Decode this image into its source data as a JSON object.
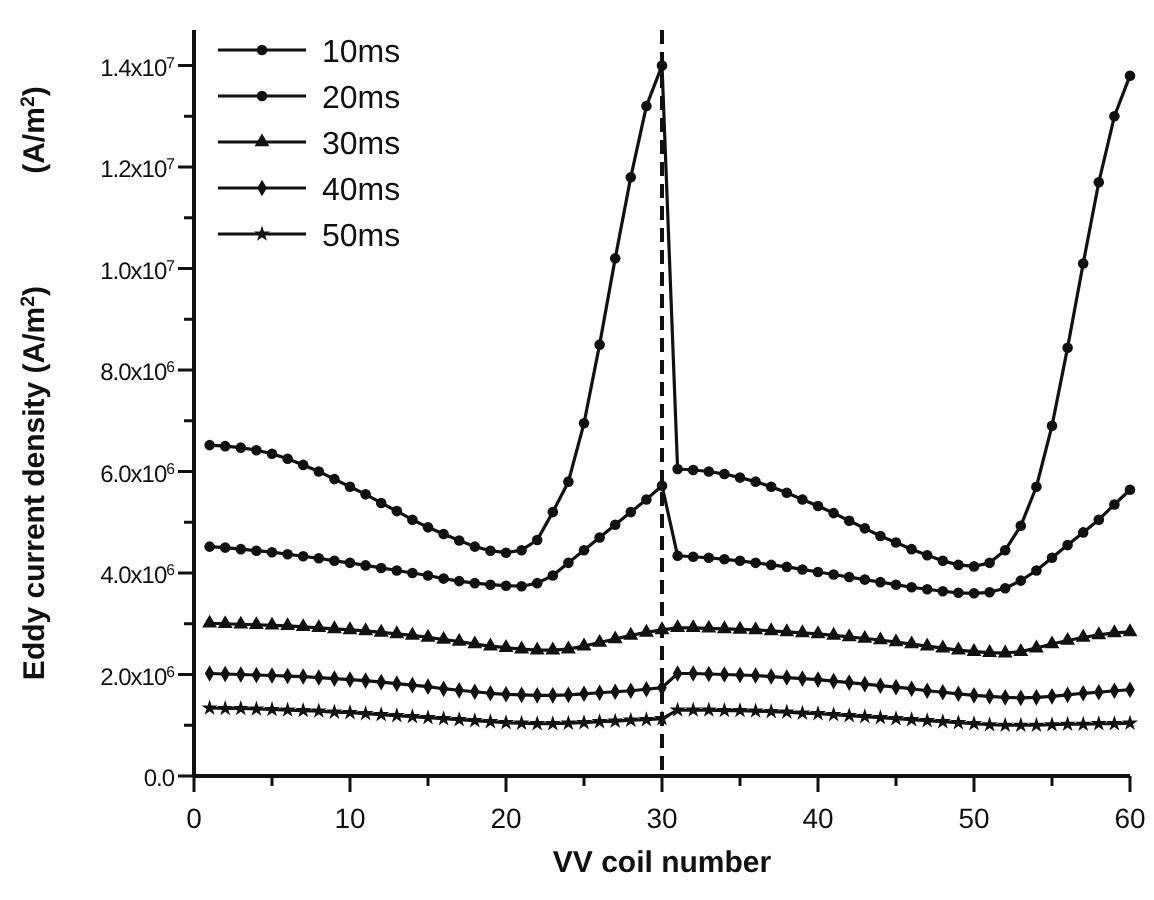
{
  "chart_data": {
    "type": "line",
    "xlabel": "VV coil number",
    "ylabel": "Eddy current density (A/m$^{2}$)",
    "annotations": [
      "(A/m$^{2}$)"
    ],
    "x": [
      1,
      2,
      3,
      4,
      5,
      6,
      7,
      8,
      9,
      10,
      11,
      12,
      13,
      14,
      15,
      16,
      17,
      18,
      19,
      20,
      21,
      22,
      23,
      24,
      25,
      26,
      27,
      28,
      29,
      30,
      31,
      32,
      33,
      34,
      35,
      36,
      37,
      38,
      39,
      40,
      41,
      42,
      43,
      44,
      45,
      46,
      47,
      48,
      49,
      50,
      51,
      52,
      53,
      54,
      55,
      56,
      57,
      58,
      59,
      60
    ],
    "xlim": [
      0,
      60
    ],
    "xticks": [
      0,
      {
        "value": 5,
        "label": null
      },
      10,
      {
        "value": 15,
        "label": null
      },
      20,
      {
        "value": 25,
        "label": null
      },
      30,
      {
        "value": 35,
        "label": null
      },
      40,
      {
        "value": 45,
        "label": null
      },
      50,
      {
        "value": 55,
        "label": null
      },
      60
    ],
    "ylim": [
      0,
      14700000
    ],
    "yticks": [
      {
        "value": 0,
        "label": "0.0"
      },
      {
        "value": 1000000,
        "label": null
      },
      {
        "value": 2000000,
        "label": "2.0x10$^{6}$"
      },
      {
        "value": 3000000,
        "label": null
      },
      {
        "value": 4000000,
        "label": "4.0x10$^{6}$"
      },
      {
        "value": 5000000,
        "label": null
      },
      {
        "value": 6000000,
        "label": "6.0x10$^{6}$"
      },
      {
        "value": 7000000,
        "label": null
      },
      {
        "value": 8000000,
        "label": "8.0x10$^{6}$"
      },
      {
        "value": 9000000,
        "label": null
      },
      {
        "value": 10000000,
        "label": "1.0x10$^{7}$"
      },
      {
        "value": 11000000,
        "label": null
      },
      {
        "value": 12000000,
        "label": "1.2x10$^{7}$"
      },
      {
        "value": 13000000,
        "label": null
      },
      {
        "value": 14000000,
        "label": "1.4x10$^{7}$"
      }
    ],
    "grid": false,
    "legend": "top left",
    "line_style": "solid",
    "ref_lines": [
      {
        "axis": "x",
        "value": 30,
        "label": null,
        "line_style": "dashed",
        "color": "#111111"
      }
    ],
    "series": [
      {
        "name": "10ms",
        "color": "#111111",
        "marker": "circle",
        "values": [
          6520000.0,
          6500000.0,
          6470000.0,
          6420000.0,
          6350000.0,
          6250000.0,
          6130000.0,
          6000000.0,
          5850000.0,
          5700000.0,
          5550000.0,
          5380000.0,
          5220000.0,
          5050000.0,
          4900000.0,
          4770000.0,
          4640000.0,
          4520000.0,
          4440000.0,
          4400000.0,
          4450000.0,
          4650000.0,
          5200000.0,
          5800000.0,
          6950000.0,
          8500000.0,
          10200000.0,
          11800000.0,
          13200000.0,
          14000000.0,
          6050000.0,
          6030000.0,
          6000000.0,
          5950000.0,
          5880000.0,
          5800000.0,
          5700000.0,
          5580000.0,
          5450000.0,
          5320000.0,
          5180000.0,
          5030000.0,
          4880000.0,
          4730000.0,
          4600000.0,
          4470000.0,
          4350000.0,
          4240000.0,
          4160000.0,
          4130000.0,
          4200000.0,
          4450000.0,
          4930000.0,
          5700000.0,
          6900000.0,
          8440000.0,
          10100000.0,
          11700000.0,
          13000000.0,
          13800000.0
        ]
      },
      {
        "name": "20ms",
        "color": "#111111",
        "marker": "circle",
        "values": [
          4520000.0,
          4500000.0,
          4470000.0,
          4440000.0,
          4410000.0,
          4370000.0,
          4330000.0,
          4290000.0,
          4240000.0,
          4200000.0,
          4150000.0,
          4100000.0,
          4050000.0,
          4000000.0,
          3950000.0,
          3890000.0,
          3840000.0,
          3800000.0,
          3770000.0,
          3750000.0,
          3740000.0,
          3800000.0,
          3950000.0,
          4200000.0,
          4450000.0,
          4700000.0,
          4950000.0,
          5200000.0,
          5450000.0,
          5720000.0,
          4340000.0,
          4320000.0,
          4300000.0,
          4270000.0,
          4240000.0,
          4200000.0,
          4160000.0,
          4120000.0,
          4070000.0,
          4020000.0,
          3970000.0,
          3920000.0,
          3870000.0,
          3820000.0,
          3770000.0,
          3720000.0,
          3680000.0,
          3640000.0,
          3610000.0,
          3600000.0,
          3620000.0,
          3700000.0,
          3850000.0,
          4050000.0,
          4300000.0,
          4550000.0,
          4800000.0,
          5050000.0,
          5350000.0,
          5640000.0
        ]
      },
      {
        "name": "30ms",
        "color": "#111111",
        "marker": "triangle",
        "values": [
          3010000.0,
          3000000.0,
          2990000.0,
          2980000.0,
          2970000.0,
          2960000.0,
          2940000.0,
          2920000.0,
          2900000.0,
          2880000.0,
          2860000.0,
          2830000.0,
          2800000.0,
          2770000.0,
          2730000.0,
          2690000.0,
          2650000.0,
          2600000.0,
          2560000.0,
          2530000.0,
          2500000.0,
          2480000.0,
          2480000.0,
          2500000.0,
          2560000.0,
          2630000.0,
          2700000.0,
          2770000.0,
          2830000.0,
          2880000.0,
          2920000.0,
          2920000.0,
          2910000.0,
          2900000.0,
          2890000.0,
          2880000.0,
          2860000.0,
          2840000.0,
          2820000.0,
          2800000.0,
          2770000.0,
          2740000.0,
          2710000.0,
          2680000.0,
          2640000.0,
          2600000.0,
          2560000.0,
          2520000.0,
          2480000.0,
          2450000.0,
          2430000.0,
          2420000.0,
          2450000.0,
          2520000.0,
          2600000.0,
          2670000.0,
          2730000.0,
          2780000.0,
          2820000.0,
          2840000.0
        ]
      },
      {
        "name": "40ms",
        "color": "#111111",
        "marker": "diamond",
        "values": [
          2020000.0,
          2010000.0,
          2000000.0,
          1990000.0,
          1980000.0,
          1970000.0,
          1960000.0,
          1940000.0,
          1920000.0,
          1900000.0,
          1880000.0,
          1850000.0,
          1820000.0,
          1790000.0,
          1760000.0,
          1720000.0,
          1690000.0,
          1660000.0,
          1630000.0,
          1610000.0,
          1600000.0,
          1590000.0,
          1590000.0,
          1600000.0,
          1620000.0,
          1640000.0,
          1660000.0,
          1680000.0,
          1710000.0,
          1740000.0,
          2020000.0,
          2020000.0,
          2010000.0,
          2000000.0,
          1990000.0,
          1980000.0,
          1960000.0,
          1940000.0,
          1920000.0,
          1900000.0,
          1870000.0,
          1840000.0,
          1810000.0,
          1780000.0,
          1750000.0,
          1720000.0,
          1680000.0,
          1650000.0,
          1620000.0,
          1590000.0,
          1570000.0,
          1550000.0,
          1540000.0,
          1550000.0,
          1570000.0,
          1600000.0,
          1630000.0,
          1650000.0,
          1680000.0,
          1700000.0
        ]
      },
      {
        "name": "50ms",
        "color": "#111111",
        "marker": "star",
        "values": [
          1340000.0,
          1330000.0,
          1330000.0,
          1320000.0,
          1310000.0,
          1300000.0,
          1290000.0,
          1280000.0,
          1260000.0,
          1250000.0,
          1230000.0,
          1210000.0,
          1190000.0,
          1170000.0,
          1150000.0,
          1130000.0,
          1110000.0,
          1090000.0,
          1070000.0,
          1050000.0,
          1040000.0,
          1030000.0,
          1030000.0,
          1040000.0,
          1050000.0,
          1070000.0,
          1080000.0,
          1100000.0,
          1110000.0,
          1130000.0,
          1300000.0,
          1300000.0,
          1300000.0,
          1290000.0,
          1290000.0,
          1280000.0,
          1270000.0,
          1260000.0,
          1240000.0,
          1230000.0,
          1210000.0,
          1190000.0,
          1170000.0,
          1150000.0,
          1130000.0,
          1110000.0,
          1090000.0,
          1070000.0,
          1050000.0,
          1030000.0,
          1010000.0,
          1000000.0,
          1000000.0,
          1000000.0,
          1010000.0,
          1020000.0,
          1020000.0,
          1030000.0,
          1030000.0,
          1040000.0
        ]
      }
    ]
  }
}
